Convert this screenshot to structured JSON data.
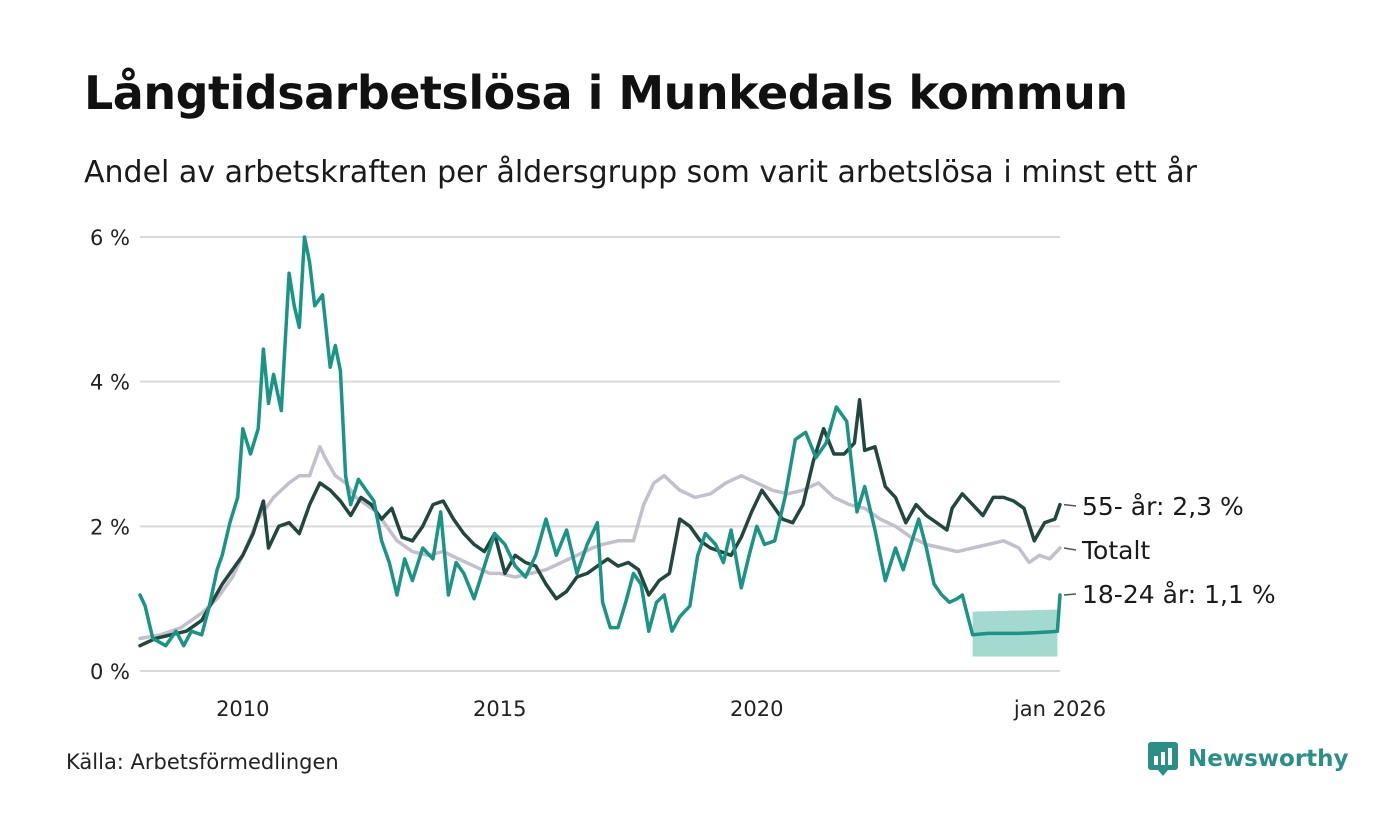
{
  "title": "Långtidsarbetslösa i Munkedals kommun",
  "subtitle": "Andel av arbetskraften per åldersgrupp som varit arbetslösa i minst ett år",
  "source": "Källa: Arbetsförmedlingen",
  "brand": {
    "name": "Newsworthy",
    "icon": "newsworthy-logo-icon"
  },
  "colors": {
    "young": "#1a9485",
    "old": "#22473f",
    "total": "#c3bfcc",
    "band": "#8dcfc4",
    "grid": "#d9d9d9"
  },
  "chart_data": {
    "type": "line",
    "ylim": [
      0,
      6
    ],
    "xlim": [
      2008.0,
      2025.9
    ],
    "yticks": [
      {
        "value": 0,
        "label": "0 %"
      },
      {
        "value": 2,
        "label": "2 %"
      },
      {
        "value": 4,
        "label": "4 %"
      },
      {
        "value": 6,
        "label": "6 %"
      }
    ],
    "xticks": [
      {
        "value": 2010,
        "label": "2010"
      },
      {
        "value": 2015,
        "label": "2015"
      },
      {
        "value": 2020,
        "label": "2020"
      },
      {
        "value": 2025.9,
        "label": "jan 2026"
      }
    ],
    "grid": true,
    "series": [
      {
        "name": "Totalt",
        "key": "total",
        "end_label": "Totalt",
        "points": [
          [
            2008.0,
            0.45
          ],
          [
            2008.4,
            0.5
          ],
          [
            2008.8,
            0.6
          ],
          [
            2009.2,
            0.8
          ],
          [
            2009.5,
            1.0
          ],
          [
            2009.8,
            1.3
          ],
          [
            2010.0,
            1.6
          ],
          [
            2010.3,
            2.1
          ],
          [
            2010.6,
            2.4
          ],
          [
            2010.9,
            2.6
          ],
          [
            2011.1,
            2.7
          ],
          [
            2011.3,
            2.7
          ],
          [
            2011.5,
            3.1
          ],
          [
            2011.6,
            2.95
          ],
          [
            2011.8,
            2.7
          ],
          [
            2012.0,
            2.6
          ],
          [
            2012.2,
            2.4
          ],
          [
            2012.4,
            2.3
          ],
          [
            2012.6,
            2.2
          ],
          [
            2012.8,
            2.0
          ],
          [
            2013.0,
            1.8
          ],
          [
            2013.3,
            1.65
          ],
          [
            2013.6,
            1.6
          ],
          [
            2013.9,
            1.65
          ],
          [
            2014.2,
            1.55
          ],
          [
            2014.5,
            1.45
          ],
          [
            2014.8,
            1.35
          ],
          [
            2015.0,
            1.35
          ],
          [
            2015.3,
            1.3
          ],
          [
            2015.6,
            1.35
          ],
          [
            2015.9,
            1.4
          ],
          [
            2016.2,
            1.5
          ],
          [
            2016.5,
            1.6
          ],
          [
            2016.8,
            1.7
          ],
          [
            2017.0,
            1.75
          ],
          [
            2017.3,
            1.8
          ],
          [
            2017.6,
            1.8
          ],
          [
            2017.8,
            2.3
          ],
          [
            2018.0,
            2.6
          ],
          [
            2018.2,
            2.7
          ],
          [
            2018.5,
            2.5
          ],
          [
            2018.8,
            2.4
          ],
          [
            2019.1,
            2.45
          ],
          [
            2019.4,
            2.6
          ],
          [
            2019.7,
            2.7
          ],
          [
            2020.0,
            2.6
          ],
          [
            2020.3,
            2.5
          ],
          [
            2020.6,
            2.45
          ],
          [
            2020.9,
            2.5
          ],
          [
            2021.2,
            2.6
          ],
          [
            2021.5,
            2.4
          ],
          [
            2021.8,
            2.3
          ],
          [
            2022.1,
            2.25
          ],
          [
            2022.4,
            2.1
          ],
          [
            2022.7,
            2.0
          ],
          [
            2023.0,
            1.85
          ],
          [
            2023.3,
            1.75
          ],
          [
            2023.6,
            1.7
          ],
          [
            2023.9,
            1.65
          ],
          [
            2024.2,
            1.7
          ],
          [
            2024.5,
            1.75
          ],
          [
            2024.8,
            1.8
          ],
          [
            2025.1,
            1.7
          ],
          [
            2025.3,
            1.5
          ],
          [
            2025.5,
            1.6
          ],
          [
            2025.7,
            1.55
          ],
          [
            2025.9,
            1.7
          ]
        ]
      },
      {
        "name": "55- år",
        "key": "old",
        "end_label": "55- år: 2,3 %",
        "points": [
          [
            2008.0,
            0.35
          ],
          [
            2008.3,
            0.45
          ],
          [
            2008.6,
            0.5
          ],
          [
            2008.9,
            0.55
          ],
          [
            2009.2,
            0.7
          ],
          [
            2009.4,
            0.95
          ],
          [
            2009.6,
            1.2
          ],
          [
            2009.8,
            1.4
          ],
          [
            2010.0,
            1.6
          ],
          [
            2010.2,
            1.9
          ],
          [
            2010.4,
            2.35
          ],
          [
            2010.5,
            1.7
          ],
          [
            2010.7,
            2.0
          ],
          [
            2010.9,
            2.05
          ],
          [
            2011.1,
            1.9
          ],
          [
            2011.3,
            2.3
          ],
          [
            2011.5,
            2.6
          ],
          [
            2011.7,
            2.5
          ],
          [
            2011.9,
            2.35
          ],
          [
            2012.1,
            2.15
          ],
          [
            2012.3,
            2.4
          ],
          [
            2012.5,
            2.3
          ],
          [
            2012.7,
            2.1
          ],
          [
            2012.9,
            2.25
          ],
          [
            2013.1,
            1.85
          ],
          [
            2013.3,
            1.8
          ],
          [
            2013.5,
            2.0
          ],
          [
            2013.7,
            2.3
          ],
          [
            2013.9,
            2.35
          ],
          [
            2014.1,
            2.1
          ],
          [
            2014.3,
            1.9
          ],
          [
            2014.5,
            1.75
          ],
          [
            2014.7,
            1.65
          ],
          [
            2014.9,
            1.9
          ],
          [
            2015.1,
            1.35
          ],
          [
            2015.3,
            1.6
          ],
          [
            2015.5,
            1.5
          ],
          [
            2015.7,
            1.45
          ],
          [
            2015.9,
            1.2
          ],
          [
            2016.1,
            1.0
          ],
          [
            2016.3,
            1.1
          ],
          [
            2016.5,
            1.3
          ],
          [
            2016.7,
            1.35
          ],
          [
            2016.9,
            1.45
          ],
          [
            2017.1,
            1.55
          ],
          [
            2017.3,
            1.45
          ],
          [
            2017.5,
            1.5
          ],
          [
            2017.7,
            1.4
          ],
          [
            2017.9,
            1.05
          ],
          [
            2018.1,
            1.25
          ],
          [
            2018.3,
            1.35
          ],
          [
            2018.5,
            2.1
          ],
          [
            2018.7,
            2.0
          ],
          [
            2018.9,
            1.8
          ],
          [
            2019.1,
            1.7
          ],
          [
            2019.3,
            1.65
          ],
          [
            2019.5,
            1.6
          ],
          [
            2019.7,
            1.85
          ],
          [
            2019.9,
            2.2
          ],
          [
            2020.1,
            2.5
          ],
          [
            2020.3,
            2.3
          ],
          [
            2020.5,
            2.1
          ],
          [
            2020.7,
            2.05
          ],
          [
            2020.9,
            2.3
          ],
          [
            2021.1,
            2.9
          ],
          [
            2021.3,
            3.35
          ],
          [
            2021.5,
            3.0
          ],
          [
            2021.7,
            3.0
          ],
          [
            2021.9,
            3.15
          ],
          [
            2022.0,
            3.75
          ],
          [
            2022.1,
            3.05
          ],
          [
            2022.3,
            3.1
          ],
          [
            2022.5,
            2.55
          ],
          [
            2022.7,
            2.4
          ],
          [
            2022.9,
            2.05
          ],
          [
            2023.1,
            2.3
          ],
          [
            2023.3,
            2.15
          ],
          [
            2023.5,
            2.05
          ],
          [
            2023.7,
            1.95
          ],
          [
            2023.8,
            2.25
          ],
          [
            2024.0,
            2.45
          ],
          [
            2024.2,
            2.3
          ],
          [
            2024.4,
            2.15
          ],
          [
            2024.6,
            2.4
          ],
          [
            2024.8,
            2.4
          ],
          [
            2025.0,
            2.35
          ],
          [
            2025.2,
            2.25
          ],
          [
            2025.4,
            1.8
          ],
          [
            2025.6,
            2.05
          ],
          [
            2025.8,
            2.1
          ],
          [
            2025.9,
            2.3
          ]
        ]
      },
      {
        "name": "18-24 år",
        "key": "young",
        "end_label": "18-24 år: 1,1 %",
        "points": [
          [
            2008.0,
            1.05
          ],
          [
            2008.1,
            0.9
          ],
          [
            2008.25,
            0.45
          ],
          [
            2008.5,
            0.35
          ],
          [
            2008.7,
            0.55
          ],
          [
            2008.85,
            0.35
          ],
          [
            2009.0,
            0.55
          ],
          [
            2009.2,
            0.5
          ],
          [
            2009.35,
            0.9
          ],
          [
            2009.5,
            1.4
          ],
          [
            2009.6,
            1.6
          ],
          [
            2009.75,
            2.05
          ],
          [
            2009.9,
            2.4
          ],
          [
            2010.0,
            3.35
          ],
          [
            2010.15,
            3.0
          ],
          [
            2010.3,
            3.35
          ],
          [
            2010.4,
            4.45
          ],
          [
            2010.5,
            3.7
          ],
          [
            2010.6,
            4.1
          ],
          [
            2010.75,
            3.6
          ],
          [
            2010.9,
            5.5
          ],
          [
            2011.0,
            5.05
          ],
          [
            2011.1,
            4.75
          ],
          [
            2011.2,
            6.0
          ],
          [
            2011.3,
            5.65
          ],
          [
            2011.4,
            5.05
          ],
          [
            2011.55,
            5.2
          ],
          [
            2011.7,
            4.2
          ],
          [
            2011.8,
            4.5
          ],
          [
            2011.9,
            4.15
          ],
          [
            2012.0,
            2.7
          ],
          [
            2012.1,
            2.3
          ],
          [
            2012.25,
            2.65
          ],
          [
            2012.4,
            2.5
          ],
          [
            2012.55,
            2.35
          ],
          [
            2012.7,
            1.8
          ],
          [
            2012.85,
            1.5
          ],
          [
            2013.0,
            1.05
          ],
          [
            2013.15,
            1.55
          ],
          [
            2013.3,
            1.25
          ],
          [
            2013.5,
            1.7
          ],
          [
            2013.7,
            1.55
          ],
          [
            2013.85,
            2.2
          ],
          [
            2014.0,
            1.05
          ],
          [
            2014.15,
            1.5
          ],
          [
            2014.3,
            1.35
          ],
          [
            2014.5,
            1.0
          ],
          [
            2014.7,
            1.45
          ],
          [
            2014.9,
            1.9
          ],
          [
            2015.1,
            1.75
          ],
          [
            2015.3,
            1.45
          ],
          [
            2015.5,
            1.3
          ],
          [
            2015.7,
            1.6
          ],
          [
            2015.9,
            2.1
          ],
          [
            2016.1,
            1.6
          ],
          [
            2016.3,
            1.95
          ],
          [
            2016.5,
            1.35
          ],
          [
            2016.7,
            1.75
          ],
          [
            2016.9,
            2.05
          ],
          [
            2017.0,
            0.95
          ],
          [
            2017.15,
            0.6
          ],
          [
            2017.3,
            0.6
          ],
          [
            2017.45,
            0.95
          ],
          [
            2017.6,
            1.35
          ],
          [
            2017.75,
            1.2
          ],
          [
            2017.9,
            0.55
          ],
          [
            2018.05,
            0.95
          ],
          [
            2018.2,
            1.05
          ],
          [
            2018.35,
            0.55
          ],
          [
            2018.5,
            0.75
          ],
          [
            2018.7,
            0.9
          ],
          [
            2018.85,
            1.6
          ],
          [
            2019.0,
            1.9
          ],
          [
            2019.2,
            1.75
          ],
          [
            2019.35,
            1.5
          ],
          [
            2019.5,
            1.95
          ],
          [
            2019.7,
            1.15
          ],
          [
            2019.85,
            1.6
          ],
          [
            2020.0,
            2.0
          ],
          [
            2020.15,
            1.75
          ],
          [
            2020.35,
            1.8
          ],
          [
            2020.55,
            2.4
          ],
          [
            2020.75,
            3.2
          ],
          [
            2020.95,
            3.3
          ],
          [
            2021.15,
            2.95
          ],
          [
            2021.35,
            3.15
          ],
          [
            2021.55,
            3.65
          ],
          [
            2021.75,
            3.45
          ],
          [
            2021.95,
            2.2
          ],
          [
            2022.1,
            2.55
          ],
          [
            2022.3,
            1.95
          ],
          [
            2022.5,
            1.25
          ],
          [
            2022.7,
            1.7
          ],
          [
            2022.85,
            1.4
          ],
          [
            2023.0,
            1.75
          ],
          [
            2023.15,
            2.1
          ],
          [
            2023.3,
            1.7
          ],
          [
            2023.45,
            1.2
          ],
          [
            2023.6,
            1.05
          ],
          [
            2023.75,
            0.95
          ],
          [
            2023.9,
            1.0
          ],
          [
            2024.0,
            1.05
          ],
          [
            2024.2,
            0.5
          ],
          [
            2024.5,
            0.52
          ],
          [
            2024.8,
            0.52
          ],
          [
            2025.1,
            0.52
          ],
          [
            2025.4,
            0.53
          ],
          [
            2025.7,
            0.54
          ],
          [
            2025.85,
            0.55
          ],
          [
            2025.9,
            1.05
          ]
        ],
        "uncertainty_band": [
          [
            2024.2,
            0.2,
            0.82
          ],
          [
            2025.85,
            0.2,
            0.85
          ]
        ]
      }
    ]
  }
}
